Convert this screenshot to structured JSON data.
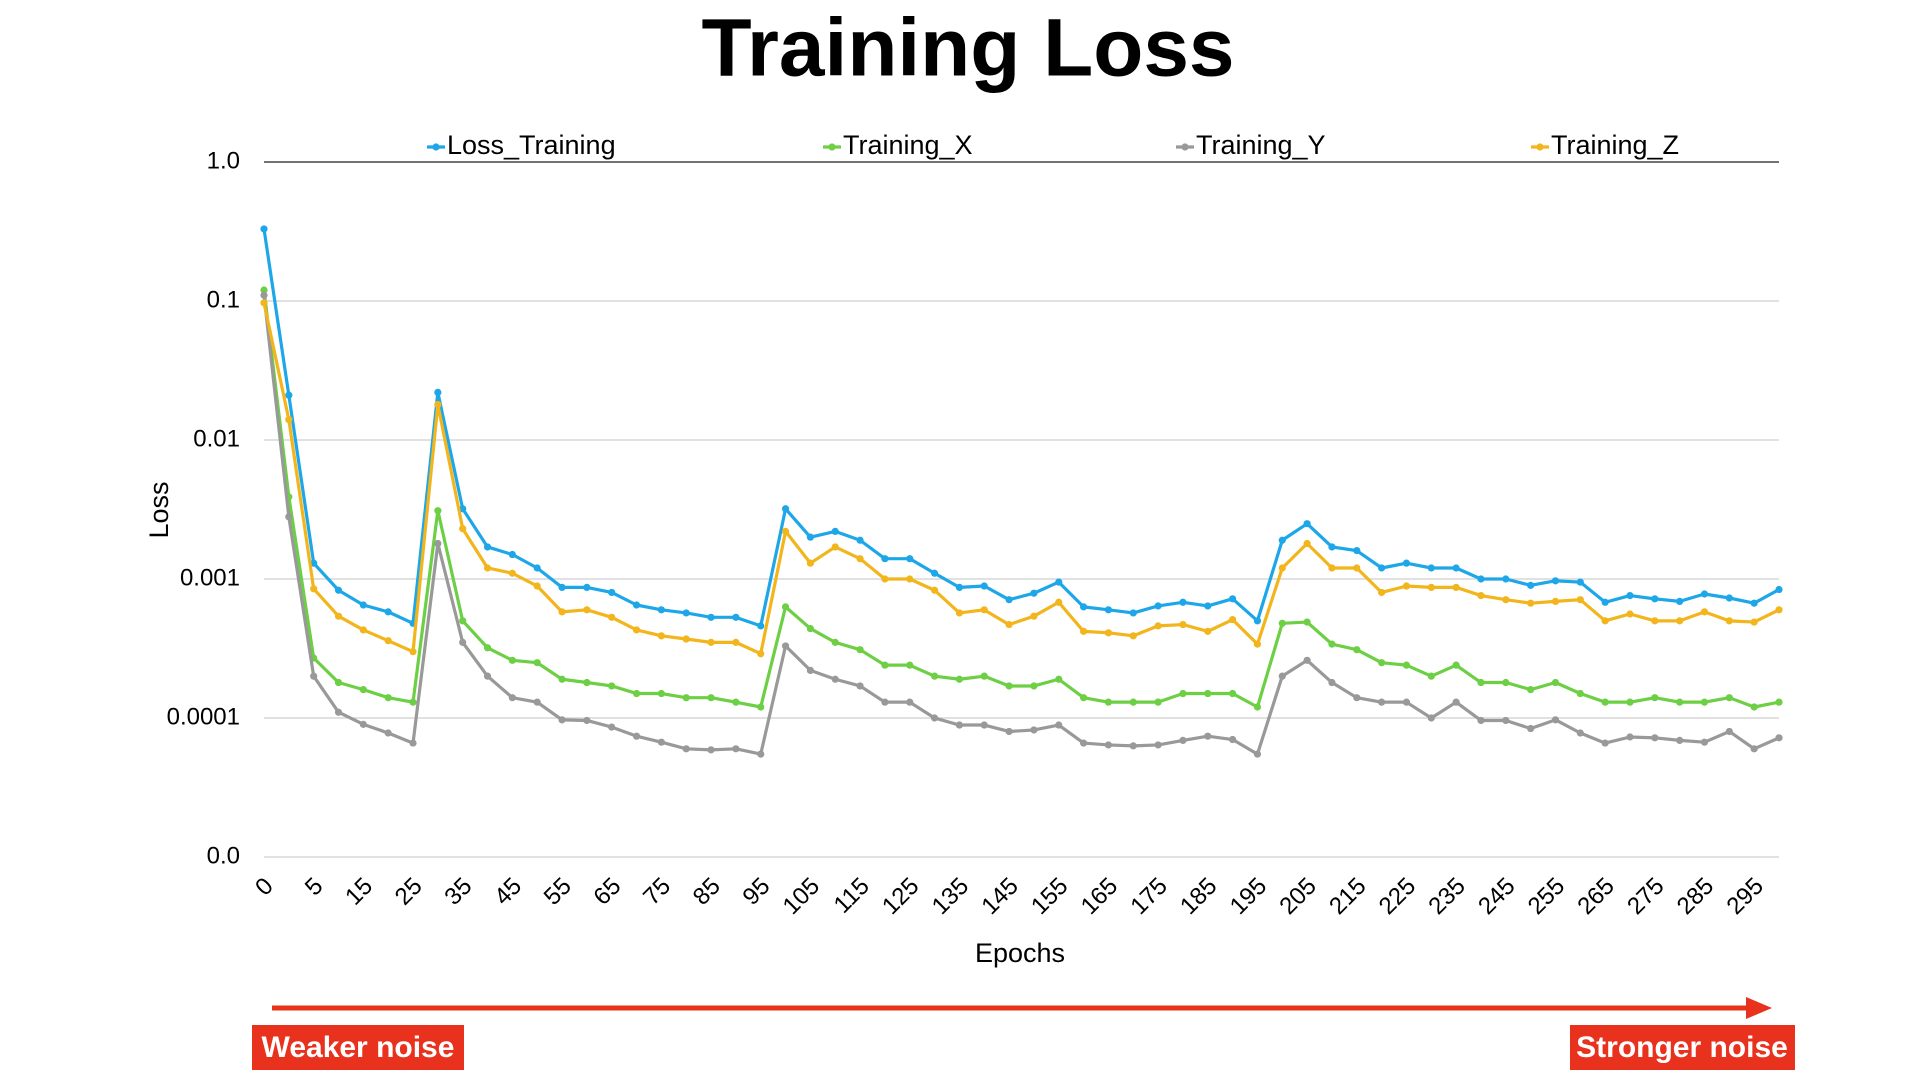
{
  "chart_data": {
    "type": "line",
    "title": "Training Loss",
    "x_label": "Epochs",
    "y_label": "Loss",
    "annotations": [
      "Weaker noise",
      "Stronger noise"
    ],
    "y_scale": "log",
    "grid": true,
    "legend": "top",
    "ylim": [
      1e-05,
      1
    ],
    "yticks": [
      {
        "value": 1e-05,
        "label": "0.0"
      },
      0.0001,
      0.001,
      0.01,
      0.1,
      {
        "value": 1,
        "label": "1.0"
      }
    ],
    "categories": [
      "0",
      null,
      "5",
      null,
      "15",
      null,
      "25",
      null,
      "35",
      null,
      "45",
      null,
      "55",
      null,
      "65",
      null,
      "75",
      null,
      "85",
      null,
      "95",
      null,
      "105",
      null,
      "115",
      null,
      "125",
      null,
      "135",
      null,
      "145",
      null,
      "155",
      null,
      "165",
      null,
      "175",
      null,
      "185",
      null,
      "195",
      null,
      "205",
      null,
      "215",
      null,
      "225",
      null,
      "235",
      null,
      "245",
      null,
      "255",
      null,
      "265",
      null,
      "275",
      null,
      "285",
      null,
      "295",
      null
    ],
    "series": [
      {
        "name": "Loss_Training",
        "color": "#1ea7e8",
        "values": [
          0.33,
          0.021,
          0.0013,
          0.00083,
          0.00065,
          0.00058,
          0.00048,
          0.022,
          0.0032,
          0.0017,
          0.0015,
          0.0012,
          0.00087,
          0.00087,
          0.0008,
          0.00065,
          0.0006,
          0.00057,
          0.00053,
          0.00053,
          0.00046,
          0.0032,
          0.002,
          0.0022,
          0.0019,
          0.0014,
          0.0014,
          0.0011,
          0.00087,
          0.00089,
          0.00071,
          0.00079,
          0.00095,
          0.00063,
          0.0006,
          0.00057,
          0.00064,
          0.00068,
          0.00064,
          0.00072,
          0.0005,
          0.0019,
          0.0025,
          0.0017,
          0.0016,
          0.0012,
          0.0013,
          0.0012,
          0.0012,
          0.001,
          0.001,
          0.0009,
          0.00097,
          0.00095,
          0.00068,
          0.00076,
          0.00072,
          0.00069,
          0.00078,
          0.00073,
          0.00067,
          0.00084
        ]
      },
      {
        "name": "Training_X",
        "color": "#6ccf44",
        "values": [
          0.12,
          0.0039,
          0.00027,
          0.00018,
          0.00016,
          0.00014,
          0.00013,
          0.0031,
          0.0005,
          0.00032,
          0.00026,
          0.00025,
          0.00019,
          0.00018,
          0.00017,
          0.00015,
          0.00015,
          0.00014,
          0.00014,
          0.00013,
          0.00012,
          0.00063,
          0.00044,
          0.00035,
          0.00031,
          0.00024,
          0.00024,
          0.0002,
          0.00019,
          0.0002,
          0.00017,
          0.00017,
          0.00019,
          0.00014,
          0.00013,
          0.00013,
          0.00013,
          0.00015,
          0.00015,
          0.00015,
          0.00012,
          0.00048,
          0.00049,
          0.00034,
          0.00031,
          0.00025,
          0.00024,
          0.0002,
          0.00024,
          0.00018,
          0.00018,
          0.00016,
          0.00018,
          0.00015,
          0.00013,
          0.00013,
          0.00014,
          0.00013,
          0.00013,
          0.00014,
          0.00012,
          0.00013
        ]
      },
      {
        "name": "Training_Y",
        "color": "#999999",
        "values": [
          0.11,
          0.0028,
          0.0002,
          0.00011,
          9e-05,
          7.8e-05,
          6.6e-05,
          0.0018,
          0.00035,
          0.0002,
          0.00014,
          0.00013,
          9.7e-05,
          9.6e-05,
          8.6e-05,
          7.4e-05,
          6.7e-05,
          6e-05,
          5.9e-05,
          6e-05,
          5.5e-05,
          0.00033,
          0.00022,
          0.00019,
          0.00017,
          0.00013,
          0.00013,
          0.0001,
          8.9e-05,
          8.9e-05,
          8e-05,
          8.2e-05,
          8.9e-05,
          6.6e-05,
          6.4e-05,
          6.3e-05,
          6.4e-05,
          6.9e-05,
          7.4e-05,
          7e-05,
          5.5e-05,
          0.0002,
          0.00026,
          0.00018,
          0.00014,
          0.00013,
          0.00013,
          0.0001,
          0.00013,
          9.6e-05,
          9.6e-05,
          8.4e-05,
          9.7e-05,
          7.8e-05,
          6.6e-05,
          7.3e-05,
          7.2e-05,
          6.9e-05,
          6.7e-05,
          8e-05,
          6e-05,
          7.2e-05
        ]
      },
      {
        "name": "Training_Z",
        "color": "#f2b51b",
        "values": [
          0.097,
          0.014,
          0.00085,
          0.00054,
          0.00043,
          0.00036,
          0.0003,
          0.018,
          0.0023,
          0.0012,
          0.0011,
          0.00089,
          0.00058,
          0.0006,
          0.00053,
          0.00043,
          0.00039,
          0.00037,
          0.00035,
          0.00035,
          0.00029,
          0.0022,
          0.0013,
          0.0017,
          0.0014,
          0.001,
          0.001,
          0.00083,
          0.00057,
          0.0006,
          0.00047,
          0.00054,
          0.00068,
          0.00042,
          0.00041,
          0.00039,
          0.00046,
          0.00047,
          0.00042,
          0.00051,
          0.00034,
          0.0012,
          0.0018,
          0.0012,
          0.0012,
          0.0008,
          0.00089,
          0.00087,
          0.00087,
          0.00076,
          0.00071,
          0.00067,
          0.00069,
          0.00071,
          0.0005,
          0.00056,
          0.0005,
          0.0005,
          0.00058,
          0.0005,
          0.00049,
          0.0006
        ]
      }
    ]
  }
}
